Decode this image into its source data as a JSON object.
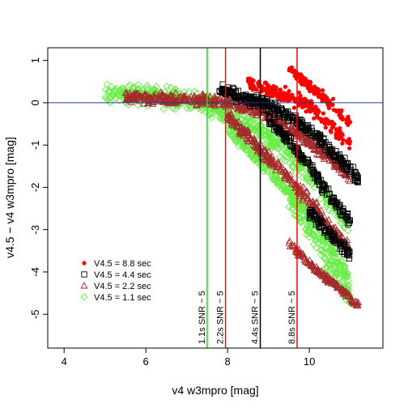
{
  "chart_data": {
    "type": "scatter",
    "xlabel": "v4 w3mpro [mag]",
    "ylabel": "v4.5 − v4 w3mpro [mag]",
    "xlim": [
      3.6,
      11.8
    ],
    "ylim": [
      -5.8,
      1.3
    ],
    "x_ticks": [
      4,
      6,
      8,
      10
    ],
    "y_ticks": [
      1,
      0,
      -1,
      -2,
      -3,
      -4,
      -5
    ],
    "grid": false,
    "legend_position": "bottom-left",
    "reference_lines": {
      "horizontal": [
        {
          "y": 0,
          "color": "#1f3f8f"
        }
      ],
      "vertical": [
        {
          "x": 7.5,
          "color": "#00ee00",
          "label": "1.1s SNR ~ 5"
        },
        {
          "x": 7.95,
          "color": "#a52a2a",
          "label": "2.2s SNR ~ 5"
        },
        {
          "x": 8.8,
          "color": "#000000",
          "label": "4.4s SNR ~ 5"
        },
        {
          "x": 9.7,
          "color": "#ff0000",
          "label": "8.8s SNR ~ 5"
        }
      ]
    },
    "series": [
      {
        "name": "V4.5 = 1.1 sec",
        "marker": "diamond",
        "color": "#66ee44",
        "branches": [
          {
            "x": [
              5.0,
              5.5,
              6.0,
              6.5,
              7.0,
              7.5,
              8.0,
              8.5,
              9.0,
              9.5,
              10.0,
              10.5,
              11.0
            ],
            "y": [
              0.25,
              0.22,
              0.18,
              0.12,
              0.05,
              -0.05,
              -0.25,
              -0.5,
              -0.8,
              -1.2,
              -1.7,
              -2.3,
              -3.0
            ],
            "spread": 0.35
          },
          {
            "x": [
              8.0,
              8.5,
              9.0,
              9.5,
              10.0,
              10.5,
              11.0
            ],
            "y": [
              -0.6,
              -1.1,
              -1.6,
              -2.1,
              -2.7,
              -3.4,
              -4.2
            ],
            "spread": 0.25
          },
          {
            "x": [
              9.5,
              10.0,
              10.5,
              11.0
            ],
            "y": [
              -2.2,
              -3.0,
              -3.8,
              -4.6
            ],
            "spread": 0.45
          }
        ]
      },
      {
        "name": "V4.5 = 2.2 sec",
        "marker": "triangle",
        "color": "#a52a2a",
        "branches": [
          {
            "x": [
              5.5,
              6.0,
              6.5,
              7.0,
              7.5,
              8.0,
              8.5,
              9.0,
              9.5,
              10.0,
              10.5,
              11.0
            ],
            "y": [
              0.15,
              0.12,
              0.1,
              0.08,
              0.05,
              0.0,
              -0.1,
              -0.3,
              -0.6,
              -0.9,
              -1.3,
              -1.8
            ],
            "spread": 0.2
          },
          {
            "x": [
              8.0,
              8.5,
              9.0,
              9.5,
              10.0,
              10.5,
              11.0
            ],
            "y": [
              -0.3,
              -0.8,
              -1.3,
              -1.8,
              -2.3,
              -2.9,
              -3.5
            ],
            "spread": 0.2
          },
          {
            "x": [
              9.5,
              10.0,
              10.5,
              11.0,
              11.2
            ],
            "y": [
              -3.3,
              -3.8,
              -4.2,
              -4.6,
              -4.8
            ],
            "spread": 0.12
          }
        ]
      },
      {
        "name": "V4.5 = 4.4 sec",
        "marker": "square",
        "color": "#000000",
        "branches": [
          {
            "x": [
              7.8,
              8.3,
              8.8,
              9.3,
              9.8,
              10.3,
              10.8,
              11.2
            ],
            "y": [
              0.3,
              0.15,
              0.0,
              -0.2,
              -0.5,
              -0.9,
              -1.4,
              -1.8
            ],
            "spread": 0.2
          },
          {
            "x": [
              9.0,
              9.5,
              10.0,
              10.5,
              11.0
            ],
            "y": [
              -0.4,
              -0.9,
              -1.5,
              -2.2,
              -2.8
            ],
            "spread": 0.2
          },
          {
            "x": [
              10.0,
              10.5,
              11.0
            ],
            "y": [
              -2.6,
              -3.1,
              -3.6
            ],
            "spread": 0.2
          }
        ]
      },
      {
        "name": "V4.5 = 8.8 sec",
        "marker": "circle",
        "color": "#ff0000",
        "branches": [
          {
            "x": [
              8.5,
              9.0,
              9.5,
              10.0,
              10.5,
              11.0
            ],
            "y": [
              0.45,
              0.3,
              0.15,
              -0.1,
              -0.5,
              -1.0
            ],
            "spread": 0.25
          },
          {
            "x": [
              9.5,
              10.0,
              10.5,
              11.0
            ],
            "y": [
              0.8,
              0.4,
              0.0,
              -0.5
            ],
            "spread": 0.2
          }
        ]
      }
    ]
  }
}
